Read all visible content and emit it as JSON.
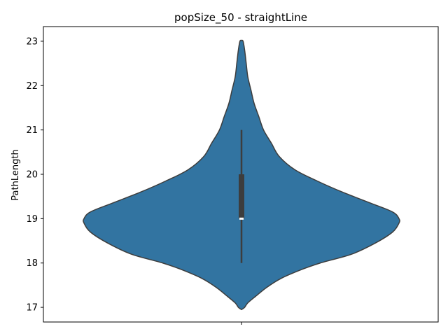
{
  "chart_data": {
    "type": "violin",
    "title": "popSize_50 - straightLine",
    "xlabel": "",
    "ylabel": "PathLength",
    "ylim": [
      16.67,
      23.33
    ],
    "yticks": [
      17,
      18,
      19,
      20,
      21,
      22,
      23
    ],
    "color": "#3274a1",
    "edge_color": "#3d3d3d",
    "density_profile": [
      {
        "y": 16.95,
        "w": 0.0
      },
      {
        "y": 17.0,
        "w": 0.02
      },
      {
        "y": 17.1,
        "w": 0.04
      },
      {
        "y": 17.25,
        "w": 0.09
      },
      {
        "y": 17.45,
        "w": 0.16
      },
      {
        "y": 17.65,
        "w": 0.25
      },
      {
        "y": 17.85,
        "w": 0.38
      },
      {
        "y": 18.0,
        "w": 0.5
      },
      {
        "y": 18.2,
        "w": 0.7
      },
      {
        "y": 18.45,
        "w": 0.85
      },
      {
        "y": 18.7,
        "w": 0.96
      },
      {
        "y": 18.9,
        "w": 1.0
      },
      {
        "y": 19.0,
        "w": 1.0
      },
      {
        "y": 19.15,
        "w": 0.96
      },
      {
        "y": 19.35,
        "w": 0.82
      },
      {
        "y": 19.6,
        "w": 0.64
      },
      {
        "y": 19.85,
        "w": 0.48
      },
      {
        "y": 20.1,
        "w": 0.34
      },
      {
        "y": 20.4,
        "w": 0.24
      },
      {
        "y": 20.7,
        "w": 0.19
      },
      {
        "y": 21.0,
        "w": 0.14
      },
      {
        "y": 21.3,
        "w": 0.11
      },
      {
        "y": 21.6,
        "w": 0.08
      },
      {
        "y": 21.9,
        "w": 0.06
      },
      {
        "y": 22.2,
        "w": 0.04
      },
      {
        "y": 22.5,
        "w": 0.03
      },
      {
        "y": 22.8,
        "w": 0.02
      },
      {
        "y": 23.0,
        "w": 0.01
      },
      {
        "y": 23.02,
        "w": 0.0
      }
    ],
    "box": {
      "whisker_low": 18,
      "q1": 19,
      "median": 19,
      "q3": 20,
      "whisker_high": 21
    }
  }
}
